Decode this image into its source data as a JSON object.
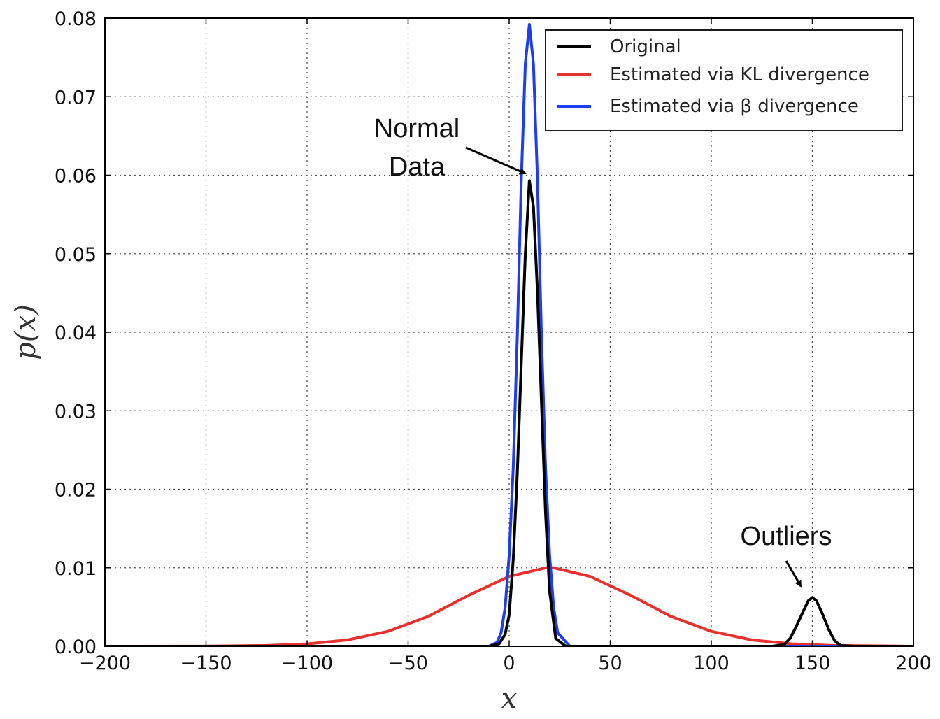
{
  "chart_data": {
    "type": "line",
    "xlabel": "x",
    "ylabel": "p(x)",
    "xlim": [
      -200,
      200
    ],
    "ylim": [
      0,
      0.08
    ],
    "xticks": [
      -200,
      -150,
      -100,
      -50,
      0,
      50,
      100,
      150,
      200
    ],
    "xtick_labels": [
      "−200",
      "−150",
      "−100",
      "−50",
      "0",
      "50",
      "100",
      "150",
      "200"
    ],
    "yticks": [
      0,
      0.01,
      0.02,
      0.03,
      0.04,
      0.05,
      0.06,
      0.07,
      0.08
    ],
    "ytick_labels": [
      "0.00",
      "0.01",
      "0.02",
      "0.03",
      "0.04",
      "0.05",
      "0.06",
      "0.07",
      "0.08"
    ],
    "grid": true,
    "legend_position": "top-right",
    "series": [
      {
        "name": "Original",
        "color": "#000000",
        "x": [
          -200,
          -10,
          -5,
          -2,
          0,
          2,
          4,
          6,
          8,
          10,
          12,
          14,
          16,
          18,
          20,
          23,
          28,
          130,
          136,
          139,
          142,
          145,
          148,
          150,
          152,
          155,
          158,
          161,
          164,
          170,
          200
        ],
        "y": [
          0,
          0,
          0.0003,
          0.0015,
          0.004,
          0.011,
          0.022,
          0.036,
          0.05,
          0.0593,
          0.056,
          0.045,
          0.031,
          0.017,
          0.007,
          0.001,
          0,
          0,
          0.0002,
          0.001,
          0.0025,
          0.0042,
          0.0058,
          0.0062,
          0.0058,
          0.0041,
          0.0022,
          0.0007,
          0.0001,
          0,
          0
        ]
      },
      {
        "name": "Estimated via KL divergence",
        "color": "#e8312f",
        "x": [
          -200,
          -150,
          -120,
          -100,
          -80,
          -60,
          -40,
          -20,
          0,
          20,
          40,
          60,
          80,
          100,
          120,
          140,
          160,
          200
        ],
        "y": [
          0,
          1e-05,
          0.0001,
          0.0003,
          0.0008,
          0.0019,
          0.0038,
          0.0065,
          0.0089,
          0.0101,
          0.0089,
          0.0065,
          0.0038,
          0.0019,
          0.0008,
          0.0003,
          0.0001,
          0
        ]
      },
      {
        "name": "Estimated via β divergence",
        "color": "#1e3cf0",
        "x": [
          -200,
          -10,
          -6,
          -4,
          -2,
          0,
          2,
          4,
          6,
          8,
          10,
          12,
          14,
          16,
          18,
          20,
          22,
          24,
          30,
          200
        ],
        "y": [
          0,
          0,
          0.0005,
          0.0017,
          0.0049,
          0.0116,
          0.0227,
          0.0394,
          0.0593,
          0.0742,
          0.0792,
          0.0742,
          0.0593,
          0.0394,
          0.0227,
          0.0116,
          0.0049,
          0.0017,
          0,
          0
        ]
      }
    ],
    "annotations": [
      {
        "text_lines": [
          "Normal",
          "Data"
        ],
        "points_to": [
          9,
          0.0598
        ]
      },
      {
        "text_lines": [
          "Outliers"
        ],
        "points_to": [
          148.5,
          0.0067
        ]
      }
    ]
  }
}
